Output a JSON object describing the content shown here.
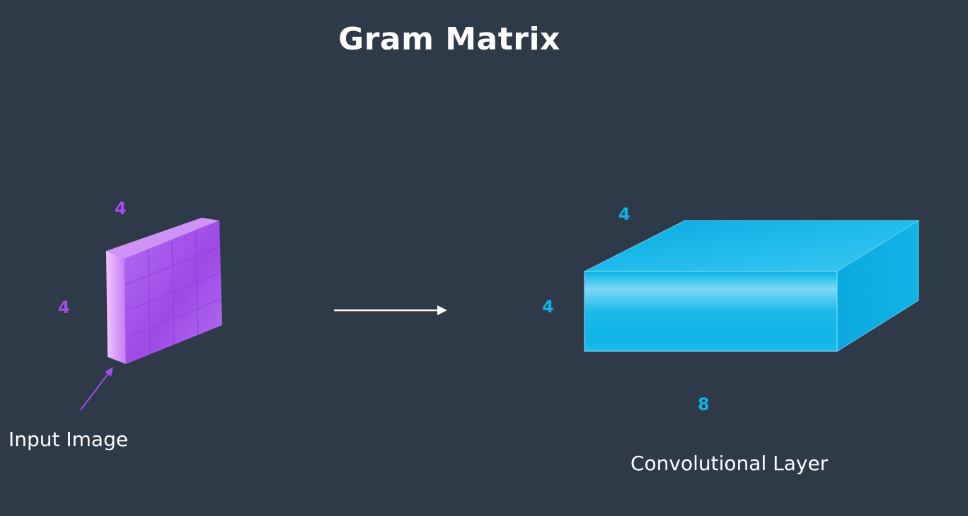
{
  "title": "Gram Matrix",
  "input": {
    "label": "Input Image",
    "width_label": "4",
    "height_label": "4",
    "color": "#a24de8"
  },
  "conv": {
    "label": "Convolutional Layer",
    "depth_label": "4",
    "height_label": "4",
    "width_label": "8",
    "color": "#0ab4e6"
  },
  "arrow_color": "#ffffff",
  "background_color": "#2e3a48"
}
